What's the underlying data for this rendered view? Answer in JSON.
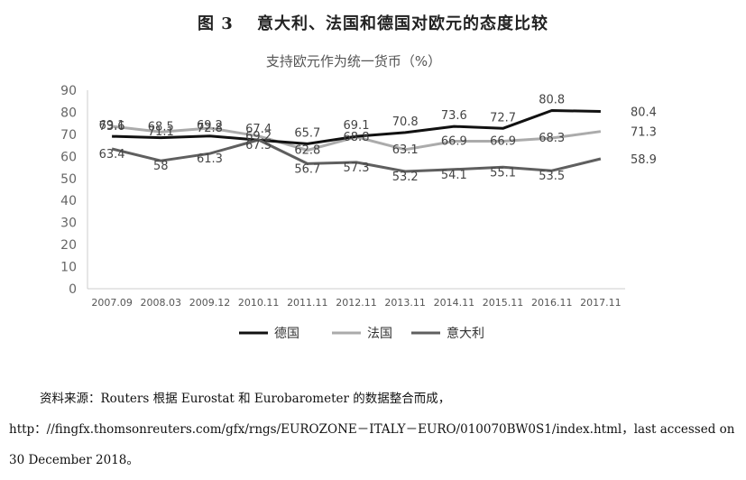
{
  "figure_title": "图 3　 意大利、法国和德国对欧元的态度比较",
  "source_note": "资料来源：Routers 根据 Eurostat 和 Eurobarometer 的数据整合而成，http：//fingfx.thomsonreuters.com/gfx/rngs/EUROZONE－ITALY－EURO/010070BW0S1/index.html，last accessed on 30 December 2018。",
  "colors": {
    "germany": "#111111",
    "france": "#ababab",
    "italy": "#5f5f5f",
    "axis": "#cccccc"
  },
  "chart_data": {
    "type": "line",
    "title": "支持欧元作为统一货币（%）",
    "categories": [
      "2007.09",
      "2008.03",
      "2009.12",
      "2010.11",
      "2011.11",
      "2012.11",
      "2013.11",
      "2014.11",
      "2015.11",
      "2016.11",
      "2017.11"
    ],
    "ylim": [
      0,
      90
    ],
    "yticks": [
      "0",
      "10",
      "20",
      "30",
      "40",
      "50",
      "60",
      "70",
      "80",
      "90"
    ],
    "grid": false,
    "legend_position": "bottom",
    "series": [
      {
        "name": "德国",
        "key": "germany",
        "values": [
          69.1,
          68.5,
          69.2,
          67.4,
          65.7,
          69.1,
          70.8,
          73.6,
          72.7,
          80.8,
          80.4
        ],
        "labels": [
          "69.1",
          "68.5",
          "69.2",
          "67.4",
          "65.7",
          "69.1",
          "70.8",
          "73.6",
          "72.7",
          "80.8",
          "80.4"
        ]
      },
      {
        "name": "法国",
        "key": "france",
        "values": [
          73.6,
          71.1,
          72.8,
          69.2,
          62.8,
          68.8,
          63.1,
          66.9,
          66.9,
          68.3,
          71.3
        ],
        "labels": [
          "73.6",
          "71.1",
          "72.8",
          "69.2",
          "62.8",
          "68.8",
          "63.1",
          "66.9",
          "66.9",
          "68.3",
          "71.3"
        ]
      },
      {
        "name": "意大利",
        "key": "italy",
        "values": [
          63.4,
          58,
          61.3,
          67.5,
          56.7,
          57.3,
          53.2,
          54.1,
          55.1,
          53.5,
          58.9
        ],
        "labels": [
          "63.4",
          "58",
          "61.3",
          "67.5",
          "56.7",
          "57.3",
          "53.2",
          "54.1",
          "55.1",
          "53.5",
          "58.9"
        ]
      }
    ]
  }
}
